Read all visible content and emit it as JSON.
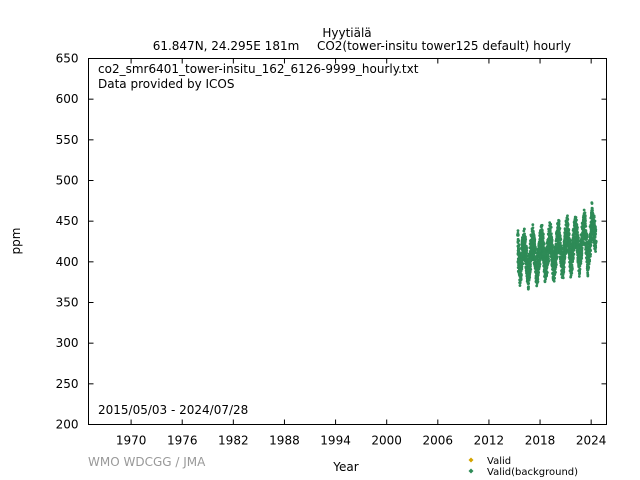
{
  "header": {
    "station": "Hyytiälä",
    "location": "61.847N, 24.295E 181m",
    "species": "CO2(tower-insitu tower125 default) hourly"
  },
  "annotations": {
    "filename": "co2_smr6401_tower-insitu_162_6126-9999_hourly.txt",
    "provider": "Data provided by ICOS",
    "date_range": "2015/05/03 - 2024/07/28"
  },
  "footer": {
    "credit": "WMO WDCGG / JMA"
  },
  "colors": {
    "valid": "#d4a400",
    "valid_background": "#2e8b57"
  },
  "chart_data": {
    "type": "scatter",
    "xlabel": "Year",
    "ylabel": "ppm",
    "xlim": [
      1965,
      2025.8
    ],
    "ylim": [
      200,
      650
    ],
    "x_ticks": [
      1970,
      1976,
      1982,
      1988,
      1994,
      2000,
      2006,
      2012,
      2018,
      2024
    ],
    "y_ticks": [
      200,
      250,
      300,
      350,
      400,
      450,
      500,
      550,
      600,
      650
    ],
    "legend_position": "bottom-right",
    "series": [
      {
        "name": "Valid",
        "color": "#d4a400",
        "x": [],
        "y": []
      },
      {
        "name": "Valid(background)",
        "color": "#2e8b57",
        "x": [
          2015.4,
          2015.45,
          2015.5,
          2015.6,
          2015.75,
          2015.9,
          2016.1,
          2016.3,
          2016.5,
          2016.65,
          2016.8,
          2017.0,
          2017.2,
          2017.45,
          2017.6,
          2017.75,
          2017.95,
          2018.2,
          2018.45,
          2018.6,
          2018.75,
          2018.95,
          2019.2,
          2019.45,
          2019.6,
          2019.75,
          2019.95,
          2020.2,
          2020.45,
          2020.6,
          2020.75,
          2020.95,
          2021.2,
          2021.45,
          2021.6,
          2021.75,
          2021.95,
          2022.2,
          2022.45,
          2022.6,
          2022.75,
          2022.95,
          2023.2,
          2023.45,
          2023.6,
          2023.75,
          2023.95,
          2024.1,
          2024.3,
          2024.55
        ],
        "y": [
          433,
          400,
          412,
          386,
          395,
          410,
          424,
          415,
          390,
          384,
          402,
          420,
          426,
          405,
          388,
          395,
          414,
          430,
          410,
          392,
          398,
          418,
          432,
          408,
          393,
          401,
          420,
          436,
          410,
          395,
          403,
          424,
          440,
          414,
          397,
          405,
          426,
          442,
          418,
          398,
          408,
          430,
          448,
          420,
          402,
          410,
          432,
          455,
          440,
          425
        ]
      }
    ]
  }
}
